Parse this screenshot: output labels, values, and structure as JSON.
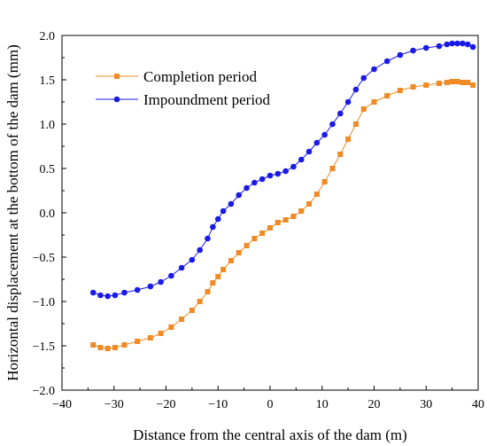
{
  "chart_data": {
    "type": "line",
    "xlabel": "Distance from the central axis of the dam (m)",
    "ylabel": "Horizontal displacement at the bottom of the dam (mm)",
    "xlim": [
      -40,
      40
    ],
    "ylim": [
      -2.0,
      2.0
    ],
    "xticks": [
      -40,
      -30,
      -20,
      -10,
      0,
      10,
      20,
      30,
      40
    ],
    "xtick_labels": [
      "−40",
      "−30",
      "−20",
      "−10",
      "0",
      "10",
      "20",
      "30",
      "40"
    ],
    "yticks": [
      -2.0,
      -1.5,
      -1.0,
      -0.5,
      0.0,
      0.5,
      1.0,
      1.5,
      2.0
    ],
    "ytick_labels": [
      "−2.0",
      "−1.5",
      "−1.0",
      "−0.5",
      "0.0",
      "0.5",
      "1.0",
      "1.5",
      "2.0"
    ],
    "grid": false,
    "legend_position": "top-left",
    "series": [
      {
        "name": "Completion period",
        "color": "#f08a24",
        "marker": "square",
        "x": [
          -34,
          -32.6,
          -31.2,
          -29.8,
          -28,
          -25.5,
          -23,
          -21,
          -19,
          -17,
          -15,
          -13.5,
          -12,
          -11,
          -10,
          -9,
          -7.5,
          -6,
          -4.5,
          -3,
          -1.5,
          0,
          1.5,
          3,
          4.5,
          6,
          7.5,
          9,
          10.5,
          12,
          13.5,
          15,
          16.5,
          18,
          20,
          22.5,
          25,
          27.5,
          30,
          32.5,
          34,
          35,
          36,
          37,
          38,
          39
        ],
        "y": [
          -1.49,
          -1.52,
          -1.53,
          -1.52,
          -1.49,
          -1.45,
          -1.41,
          -1.36,
          -1.29,
          -1.2,
          -1.1,
          -1.0,
          -0.89,
          -0.79,
          -0.72,
          -0.64,
          -0.54,
          -0.45,
          -0.37,
          -0.29,
          -0.23,
          -0.17,
          -0.11,
          -0.08,
          -0.04,
          0.02,
          0.1,
          0.21,
          0.35,
          0.5,
          0.66,
          0.83,
          1.0,
          1.17,
          1.25,
          1.32,
          1.38,
          1.42,
          1.44,
          1.46,
          1.47,
          1.48,
          1.48,
          1.47,
          1.47,
          1.44
        ]
      },
      {
        "name": "Impoundment period",
        "color": "#1a1ae6",
        "marker": "circle",
        "x": [
          -34,
          -32.6,
          -31.2,
          -29.8,
          -28,
          -25.5,
          -23,
          -21,
          -19,
          -17,
          -15,
          -13.5,
          -12,
          -11,
          -10,
          -9,
          -7.5,
          -6,
          -4.5,
          -3,
          -1.5,
          0,
          1.5,
          3,
          4.5,
          6,
          7.5,
          9,
          10.5,
          12,
          13.5,
          15,
          16.5,
          18,
          20,
          22.5,
          25,
          27.5,
          30,
          32.5,
          34,
          35,
          36,
          37,
          38,
          39
        ],
        "y": [
          -0.9,
          -0.93,
          -0.94,
          -0.93,
          -0.9,
          -0.87,
          -0.83,
          -0.78,
          -0.71,
          -0.62,
          -0.53,
          -0.42,
          -0.29,
          -0.16,
          -0.07,
          0.02,
          0.1,
          0.2,
          0.28,
          0.34,
          0.38,
          0.42,
          0.44,
          0.47,
          0.52,
          0.6,
          0.69,
          0.79,
          0.88,
          1.0,
          1.12,
          1.25,
          1.39,
          1.52,
          1.62,
          1.71,
          1.78,
          1.83,
          1.86,
          1.88,
          1.9,
          1.91,
          1.91,
          1.91,
          1.9,
          1.87
        ]
      }
    ]
  }
}
